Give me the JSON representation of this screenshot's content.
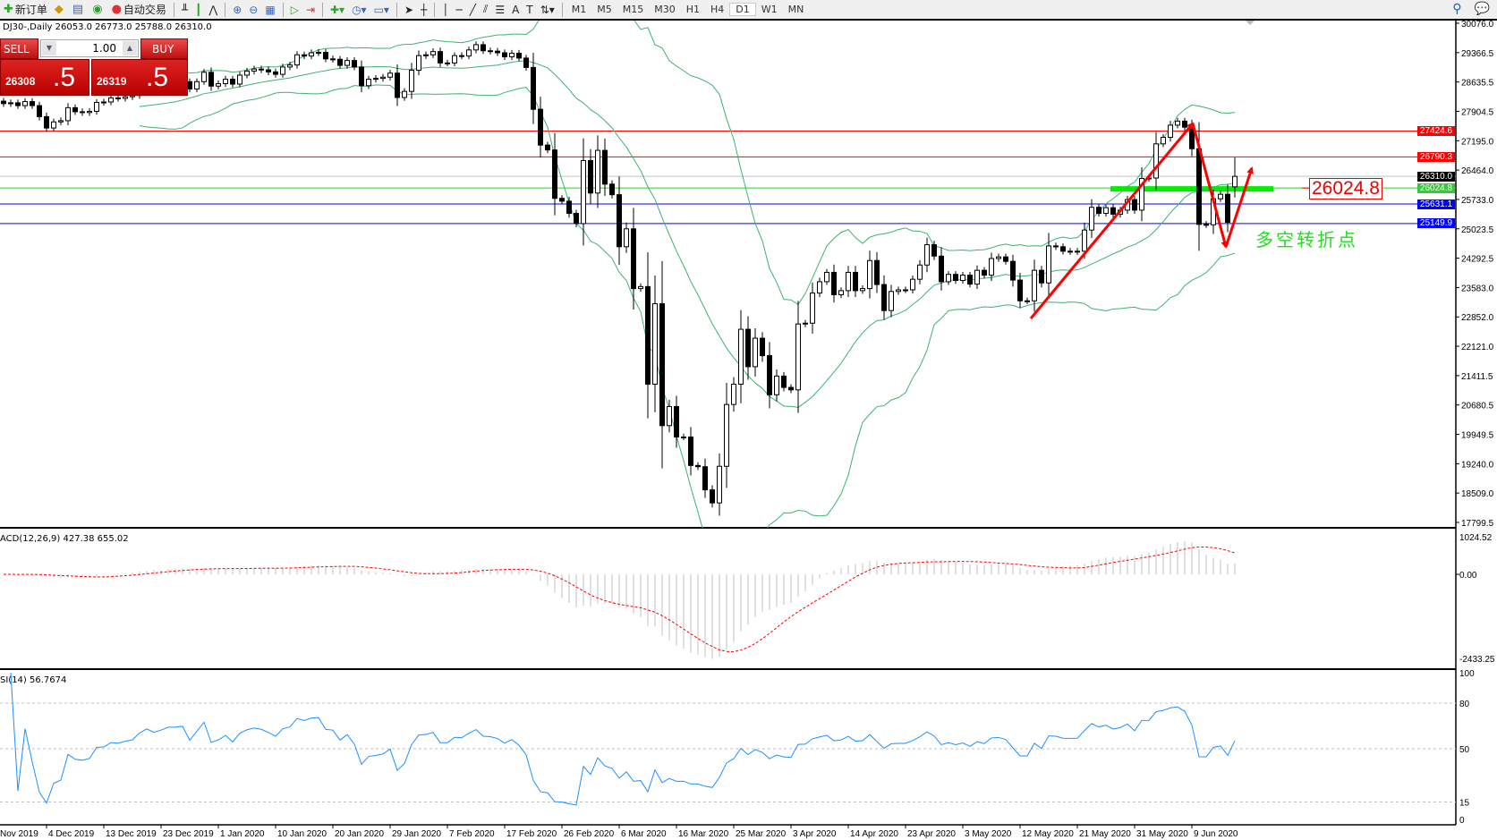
{
  "toolbar": {
    "new_order": "新订单",
    "auto_trading": "自动交易",
    "timeframes": [
      "M1",
      "M5",
      "M15",
      "M30",
      "H1",
      "H4",
      "D1",
      "W1",
      "MN"
    ],
    "active_timeframe": "D1",
    "icons": [
      "new-order-icon",
      "gold-icon",
      "market-watch-icon",
      "signals-icon",
      "auto-trading-icon",
      "bar-chart-icon",
      "candlestick-icon",
      "line-chart-icon",
      "zoom-in-icon",
      "zoom-out-icon",
      "tile-windows-icon",
      "autoscroll-icon",
      "chart-shift-icon",
      "indicators-icon",
      "periods-icon",
      "templates-icon",
      "cursor-icon",
      "crosshair-icon",
      "vertical-line-icon",
      "horizontal-line-icon",
      "trendline-icon",
      "equidistant-channel-icon",
      "fibonacci-icon",
      "text-icon",
      "text-label-icon",
      "arrows-icon",
      "search-icon",
      "chat-icon"
    ],
    "text_tool": "A",
    "text_label_tool": "T"
  },
  "chart": {
    "symbol_info": "DJ30-,Daily  26053.0 26773.0 25788.0 26310.0",
    "last_bar": {
      "open": 26053.0,
      "high": 26773.0,
      "low": 25788.0,
      "close": 26310.0
    }
  },
  "one_click": {
    "sell_label": "SELL",
    "buy_label": "BUY",
    "lot": "1.00",
    "sell_price_main": "26308",
    "sell_price_big": ".5",
    "buy_price_main": "26319",
    "buy_price_big": ".5"
  },
  "price_axis": {
    "ticks": [
      "30076.0",
      "29366.5",
      "28635.5",
      "27904.5",
      "27195.0",
      "26464.0",
      "25733.0",
      "25023.5",
      "24292.5",
      "23583.0",
      "22852.0",
      "22121.0",
      "21411.5",
      "20680.5",
      "19949.5",
      "19240.0",
      "18509.0",
      "17799.5"
    ],
    "range": [
      17799.5,
      30076.0
    ]
  },
  "levels": [
    {
      "value": "27424.6",
      "color": "#ff0000",
      "label_bg": "#ff0000"
    },
    {
      "value": "26790.3",
      "color": "#ff0000",
      "label_bg": "#ff0000"
    },
    {
      "value": "26310.0",
      "color": "#c0c0c0",
      "label_bg": "#000000"
    },
    {
      "value": "26024.8",
      "color": "#32cd32",
      "label_bg": "#32cd32"
    },
    {
      "value": "25631.1",
      "color": "#0000ff",
      "label_bg": "#0000ff"
    },
    {
      "value": "25149.9",
      "color": "#0000ff",
      "label_bg": "#0000ff"
    }
  ],
  "annotations": {
    "price_box": "26024.8",
    "chinese_note": "多空转折点",
    "arrow_color": "#ff0000",
    "highlight_color": "#00ee00"
  },
  "date_axis": [
    "Nov 2019",
    "4 Dec 2019",
    "13 Dec 2019",
    "23 Dec 2019",
    "1 Jan 2020",
    "10 Jan 2020",
    "20 Jan 2020",
    "29 Jan 2020",
    "7 Feb 2020",
    "17 Feb 2020",
    "26 Feb 2020",
    "6 Mar 2020",
    "16 Mar 2020",
    "25 Mar 2020",
    "3 Apr 2020",
    "14 Apr 2020",
    "23 Apr 2020",
    "3 May 2020",
    "12 May 2020",
    "21 May 2020",
    "31 May 2020",
    "9 Jun 2020"
  ],
  "macd": {
    "label": "ACD(12,26,9) 427.38 655.02",
    "ticks": [
      "1024.52",
      "0.00",
      "-2433.25"
    ],
    "range": [
      -2433.25,
      1024.52
    ],
    "histogram_color": "#c0c0c0",
    "signal_color": "#ff0000"
  },
  "rsi": {
    "label": "SI(14) 56.7674",
    "ticks": [
      "100",
      "80",
      "50",
      "15",
      "0"
    ],
    "levels": [
      80,
      50,
      15
    ],
    "color": "#1e90ff"
  },
  "bollinger": {
    "period": 20,
    "deviation": 2,
    "color": "#3cb371"
  },
  "chart_data": {
    "type": "candlestick",
    "symbol": "DJ30-",
    "period": "Daily",
    "close": [
      28100,
      28120,
      28050,
      28150,
      28050,
      27780,
      27500,
      27650,
      27680,
      28000,
      27900,
      27880,
      27910,
      28130,
      28140,
      28240,
      28230,
      28270,
      28300,
      28450,
      28550,
      28500,
      28550,
      28620,
      28620,
      28640,
      28460,
      28640,
      28870,
      28530,
      28590,
      28700,
      28580,
      28800,
      28900,
      28950,
      28930,
      28880,
      28820,
      29000,
      29050,
      29300,
      29270,
      29350,
      29360,
      29200,
      29190,
      29040,
      29160,
      29000,
      28540,
      28700,
      28720,
      28750,
      28850,
      28250,
      28400,
      28920,
      29280,
      29300,
      29380,
      29100,
      29100,
      29280,
      29270,
      29420,
      29550,
      29400,
      29390,
      29350,
      29250,
      29340,
      29220,
      28990,
      27960,
      27080,
      26960,
      25770,
      25700,
      25400,
      25150,
      26700,
      25900,
      26950,
      26120,
      25860,
      24580,
      25020,
      23550,
      23600,
      21200,
      23180,
      20180,
      20650,
      19900,
      19900,
      19200,
      19170,
      18600,
      18280,
      19180,
      20700,
      21200,
      22550,
      21630,
      22330,
      21900,
      20940,
      21400,
      21120,
      21060,
      22680,
      22700,
      23440,
      23720,
      23950,
      23400,
      23500,
      23950,
      23500,
      23550,
      24240,
      23650,
      23010,
      23480,
      23520,
      23520,
      23780,
      24130,
      24630,
      24350,
      23720,
      23900,
      23750,
      23880,
      23660,
      24000,
      23880,
      24290,
      24330,
      24220,
      23760,
      23250,
      23250,
      24000,
      23690,
      24600,
      24580,
      24470,
      24460,
      24470,
      24990,
      25550,
      25400,
      25540,
      25380,
      25480,
      25740,
      25480,
      26260,
      26270,
      27110,
      27270,
      27570,
      27670,
      27520,
      26990,
      25130,
      25120,
      25760,
      25870,
      25180,
      26310
    ]
  }
}
